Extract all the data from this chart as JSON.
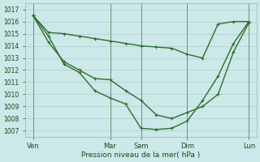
{
  "background_color": "#cce8e8",
  "grid_color": "#aacece",
  "line_color": "#2d6e2d",
  "vline_color": "#2d6e2d",
  "ylim": [
    1006.5,
    1017.5
  ],
  "yticks": [
    1007,
    1008,
    1009,
    1010,
    1011,
    1012,
    1013,
    1014,
    1015,
    1016,
    1017
  ],
  "xlabel": "Pression niveau de la mer( hPa )",
  "xtick_labels": [
    "Ven",
    "Mar",
    "Sam",
    "Dim",
    "Lun"
  ],
  "xtick_positions": [
    0,
    5,
    7,
    10,
    14
  ],
  "xlim": [
    -0.5,
    14.5
  ],
  "line1_x": [
    0,
    1,
    2,
    3,
    4,
    5,
    6,
    7,
    8,
    9,
    10,
    11,
    12,
    13,
    14
  ],
  "line1_y": [
    1016.5,
    1015.1,
    1015.0,
    1014.8,
    1014.6,
    1014.4,
    1014.2,
    1014.0,
    1013.9,
    1013.8,
    1013.3,
    1013.0,
    1015.8,
    1016.0,
    1016.0
  ],
  "line2_x": [
    0,
    1,
    2,
    3,
    4,
    5,
    6,
    7,
    8,
    9,
    10,
    11,
    12,
    13,
    14
  ],
  "line2_y": [
    1016.5,
    1014.3,
    1012.7,
    1012.0,
    1011.3,
    1011.2,
    1010.3,
    1009.5,
    1008.3,
    1008.0,
    1008.5,
    1009.0,
    1010.0,
    1013.5,
    1015.9
  ],
  "line3_x": [
    0,
    1,
    2,
    3,
    4,
    5,
    6,
    7,
    8,
    9,
    10,
    11,
    12,
    13,
    14
  ],
  "line3_y": [
    1016.5,
    1014.8,
    1012.5,
    1011.8,
    1010.3,
    1009.7,
    1009.2,
    1007.2,
    1007.1,
    1007.2,
    1007.8,
    1009.5,
    1011.5,
    1014.2,
    1016.0
  ],
  "vline_positions": [
    0,
    5,
    7,
    10,
    14
  ]
}
